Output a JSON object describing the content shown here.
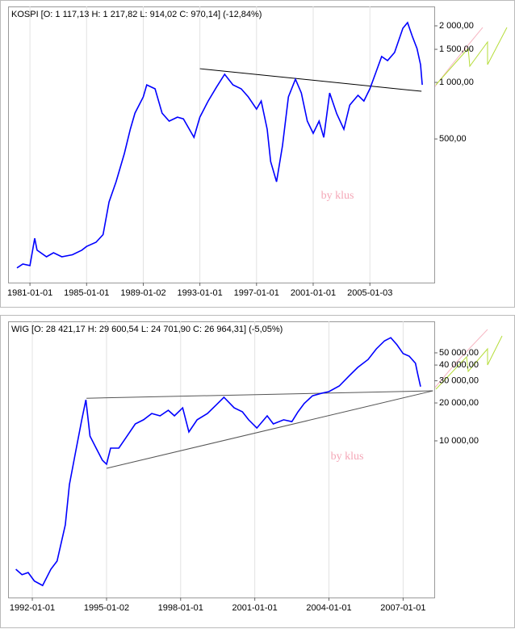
{
  "chart_data": [
    {
      "type": "line",
      "log_y": true,
      "grid": true,
      "color": "#0000ff",
      "title": "KOSPI [O: 1 117,13  H: 1 217,82  L: 914,02  C: 970,14] (-12,84%)",
      "watermark": "by klus",
      "x": [
        "1980-02-01",
        "1980-07-01",
        "1981-01-01",
        "1981-05-01",
        "1981-07-01",
        "1982-03-01",
        "1982-09-01",
        "1983-04-01",
        "1984-01-01",
        "1984-09-01",
        "1985-01-01",
        "1985-09-01",
        "1986-03-01",
        "1986-08-01",
        "1987-02-01",
        "1987-09-01",
        "1988-02-01",
        "1988-06-01",
        "1989-01-02",
        "1989-04-01",
        "1989-11-01",
        "1990-05-01",
        "1990-11-01",
        "1991-06-01",
        "1991-11-01",
        "1992-08-01",
        "1993-01-01",
        "1993-08-01",
        "1994-03-01",
        "1994-10-01",
        "1995-05-01",
        "1995-12-01",
        "1996-06-01",
        "1997-01-01",
        "1997-05-01",
        "1997-10-01",
        "1998-01-01",
        "1998-06-01",
        "1998-11-01",
        "1999-04-01",
        "1999-10-01",
        "2000-03-01",
        "2000-08-01",
        "2001-01-01",
        "2001-06-01",
        "2001-10-01",
        "2002-03-01",
        "2002-09-01",
        "2003-03-01",
        "2003-08-01",
        "2004-03-01",
        "2004-08-01",
        "2005-01-03",
        "2005-06-01",
        "2005-11-01",
        "2006-04-01",
        "2006-10-01",
        "2007-05-01",
        "2007-09-01",
        "2008-01-01",
        "2008-05-01",
        "2008-08-01",
        "2008-09-15"
      ],
      "values": [
        103,
        108,
        106,
        148,
        128,
        118,
        124,
        118,
        121,
        128,
        134,
        141,
        155,
        231,
        296,
        419,
        563,
        686,
        837,
        970,
        924,
        686,
        622,
        653,
        640,
        510,
        653,
        796,
        942,
        1104,
        970,
        924,
        837,
        721,
        796,
        563,
        379,
        296,
        462,
        837,
        1040,
        879,
        622,
        536,
        622,
        510,
        879,
        680,
        563,
        758,
        854,
        796,
        924,
        1126,
        1373,
        1307,
        1443,
        1942,
        2080,
        1758,
        1515,
        1243,
        970
      ],
      "xlim": [
        "1979-06-15",
        "2009-07-20"
      ],
      "xticks": [
        "1981-01-01",
        "1985-01-01",
        "1989-01-02",
        "1993-01-01",
        "1997-01-01",
        "2001-01-01",
        "2005-01-03"
      ],
      "ylim": [
        86,
        2536
      ],
      "yticks": [
        {
          "value": 500,
          "label": "500,00"
        },
        {
          "value": 1000,
          "label": "1 000,00"
        },
        {
          "value": 1500,
          "label": "1 500,00"
        },
        {
          "value": 2000,
          "label": "2 000,00"
        }
      ],
      "trendlines": [
        {
          "x": [
            "1993-01-01",
            "2008-08-25"
          ],
          "y": [
            1183,
            897
          ],
          "color": "#000000"
        }
      ]
    },
    {
      "type": "line",
      "log_y": true,
      "grid": true,
      "color": "#0000ff",
      "title": "WIG [O: 28 421,17  H: 29 600,54  L: 24 701,90  C: 26 964,31] (-5,05%)",
      "watermark": "by klus",
      "x": [
        "1991-05-01",
        "1991-08-01",
        "1991-11-01",
        "1992-02-01",
        "1992-06-01",
        "1992-10-01",
        "1993-01-01",
        "1993-05-01",
        "1993-07-01",
        "1993-10-01",
        "1994-01-01",
        "1994-03-01",
        "1994-05-01",
        "1994-08-01",
        "1994-11-01",
        "1995-01-02",
        "1995-03-01",
        "1995-07-01",
        "1995-11-01",
        "1996-03-01",
        "1996-07-01",
        "1996-11-01",
        "1997-03-01",
        "1997-07-01",
        "1997-10-01",
        "1998-02-01",
        "1998-05-01",
        "1998-09-01",
        "1999-02-01",
        "1999-07-01",
        "1999-10-01",
        "2000-03-01",
        "2000-07-01",
        "2000-10-01",
        "2001-02-01",
        "2001-07-01",
        "2001-10-01",
        "2002-03-01",
        "2002-07-01",
        "2002-10-01",
        "2003-01-01",
        "2003-05-01",
        "2003-09-01",
        "2004-01-01",
        "2004-06-01",
        "2004-11-01",
        "2005-03-01",
        "2005-08-01",
        "2005-12-01",
        "2006-04-01",
        "2006-07-01",
        "2006-10-01",
        "2007-01-01",
        "2007-04-01",
        "2007-07-01",
        "2007-08-01",
        "2007-09-15"
      ],
      "values": [
        955,
        866,
        900,
        770,
        710,
        955,
        1110,
        2150,
        4500,
        8130,
        14700,
        21200,
        10900,
        8750,
        7020,
        6520,
        8750,
        8750,
        10900,
        13640,
        14700,
        16500,
        15800,
        17500,
        15800,
        18300,
        11760,
        14700,
        16500,
        19800,
        22200,
        18300,
        17000,
        14700,
        12650,
        15800,
        13640,
        14700,
        14200,
        17000,
        19800,
        22800,
        23800,
        24600,
        27300,
        33000,
        38300,
        44300,
        53700,
        62300,
        66000,
        58000,
        49300,
        47000,
        41300,
        34600,
        26964
      ],
      "xlim": [
        "1991-01-08",
        "2008-04-05"
      ],
      "xticks": [
        "1992-01-01",
        "1995-01-02",
        "1998-01-01",
        "2001-01-01",
        "2004-01-01",
        "2007-01-01"
      ],
      "ylim": [
        570,
        88900
      ],
      "yticks": [
        {
          "value": 10000,
          "label": "10 000,00"
        },
        {
          "value": 20000,
          "label": "20 000,00"
        },
        {
          "value": 30000,
          "label": "30 000,00"
        },
        {
          "value": 40000,
          "label": "40 000,00"
        },
        {
          "value": 50000,
          "label": "50 000,00"
        }
      ],
      "trendlines": [
        {
          "x": [
            "1994-03-10",
            "2008-03-15"
          ],
          "y": [
            21800,
            24950
          ],
          "color": "#555555"
        },
        {
          "x": [
            "1995-01-02",
            "2008-03-15"
          ],
          "y": [
            6050,
            24950
          ],
          "color": "#555555"
        }
      ]
    }
  ]
}
